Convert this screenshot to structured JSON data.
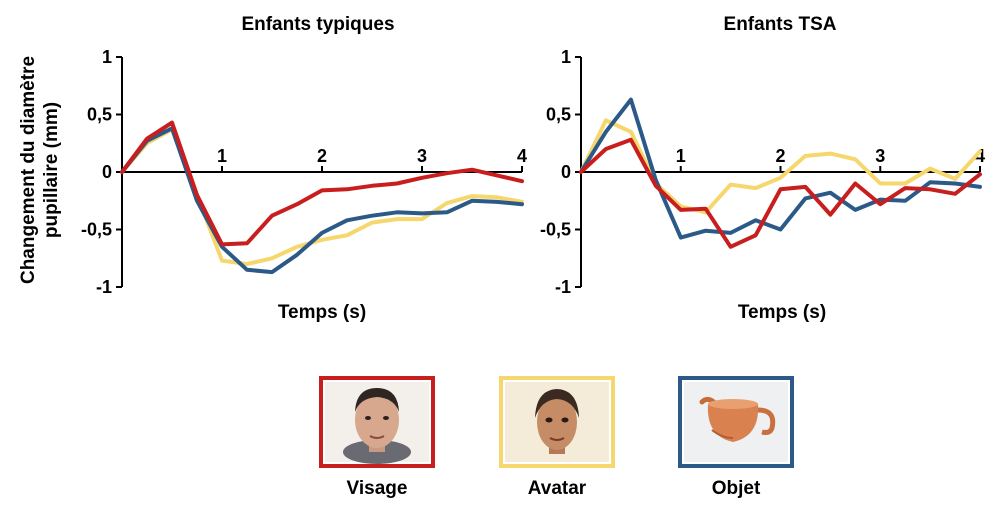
{
  "figure": {
    "ylabel_lines": [
      "Changement du diamètre",
      "pupillaire (mm)"
    ]
  },
  "chart_data": [
    {
      "type": "line",
      "title": "Enfants typiques",
      "xlabel": "Temps (s)",
      "ylabel": "Changement du diamètre pupillaire (mm)",
      "xlim": [
        0,
        4
      ],
      "ylim": [
        -1,
        1
      ],
      "x_ticks": [
        "1",
        "2",
        "3",
        "4"
      ],
      "y_ticks": [
        "1",
        "0,5",
        "0",
        "-0,5",
        "-1"
      ],
      "y_tick_values": [
        1,
        0.5,
        0,
        -0.5,
        -1
      ],
      "grid": false,
      "series": [
        {
          "name": "Avatar",
          "color": "#f5d76e",
          "x": [
            0,
            0.25,
            0.5,
            0.75,
            1.0,
            1.25,
            1.5,
            1.75,
            2.0,
            2.25,
            2.5,
            2.75,
            3.0,
            3.25,
            3.5,
            3.75,
            4.0
          ],
          "y": [
            0,
            0.25,
            0.37,
            -0.2,
            -0.77,
            -0.8,
            -0.75,
            -0.65,
            -0.59,
            -0.55,
            -0.44,
            -0.41,
            -0.41,
            -0.27,
            -0.21,
            -0.22,
            -0.26
          ]
        },
        {
          "name": "Objet",
          "color": "#2c5a88",
          "x": [
            0,
            0.25,
            0.5,
            0.75,
            1.0,
            1.25,
            1.5,
            1.75,
            2.0,
            2.25,
            2.5,
            2.75,
            3.0,
            3.25,
            3.5,
            3.75,
            4.0
          ],
          "y": [
            0,
            0.27,
            0.38,
            -0.25,
            -0.65,
            -0.85,
            -0.87,
            -0.72,
            -0.53,
            -0.42,
            -0.38,
            -0.35,
            -0.36,
            -0.35,
            -0.25,
            -0.26,
            -0.28
          ]
        },
        {
          "name": "Visage",
          "color": "#c81e1e",
          "x": [
            0,
            0.25,
            0.5,
            0.75,
            1.0,
            1.25,
            1.5,
            1.75,
            2.0,
            2.25,
            2.5,
            2.75,
            3.0,
            3.25,
            3.5,
            3.75,
            4.0
          ],
          "y": [
            0,
            0.29,
            0.43,
            -0.2,
            -0.63,
            -0.62,
            -0.38,
            -0.28,
            -0.16,
            -0.15,
            -0.12,
            -0.1,
            -0.05,
            -0.01,
            0.02,
            -0.03,
            -0.08
          ]
        }
      ]
    },
    {
      "type": "line",
      "title": "Enfants TSA",
      "xlabel": "Temps (s)",
      "ylabel": "Changement du diamètre pupillaire (mm)",
      "xlim": [
        0,
        4
      ],
      "ylim": [
        -1,
        1
      ],
      "x_ticks": [
        "1",
        "2",
        "3",
        "4"
      ],
      "y_ticks": [
        "1",
        "0,5",
        "0",
        "-0,5",
        "-1"
      ],
      "y_tick_values": [
        1,
        0.5,
        0,
        -0.5,
        -1
      ],
      "grid": false,
      "series": [
        {
          "name": "Avatar",
          "color": "#f5d76e",
          "x": [
            0,
            0.25,
            0.5,
            0.75,
            1.0,
            1.25,
            1.5,
            1.75,
            2.0,
            2.25,
            2.5,
            2.75,
            3.0,
            3.25,
            3.5,
            3.75,
            4.0
          ],
          "y": [
            0,
            0.45,
            0.35,
            -0.1,
            -0.3,
            -0.35,
            -0.11,
            -0.14,
            -0.05,
            0.14,
            0.16,
            0.11,
            -0.1,
            -0.1,
            0.03,
            -0.06,
            0.18
          ]
        },
        {
          "name": "Objet",
          "color": "#2c5a88",
          "x": [
            0,
            0.25,
            0.5,
            0.75,
            1.0,
            1.25,
            1.5,
            1.75,
            2.0,
            2.25,
            2.5,
            2.75,
            3.0,
            3.25,
            3.5,
            3.75,
            4.0
          ],
          "y": [
            0,
            0.35,
            0.63,
            -0.07,
            -0.57,
            -0.51,
            -0.53,
            -0.42,
            -0.5,
            -0.23,
            -0.18,
            -0.33,
            -0.24,
            -0.25,
            -0.09,
            -0.1,
            -0.13
          ]
        },
        {
          "name": "Visage",
          "color": "#c81e1e",
          "x": [
            0,
            0.25,
            0.5,
            0.75,
            1.0,
            1.25,
            1.5,
            1.75,
            2.0,
            2.25,
            2.5,
            2.75,
            3.0,
            3.25,
            3.5,
            3.75,
            4.0
          ],
          "y": [
            0,
            0.2,
            0.28,
            -0.12,
            -0.33,
            -0.32,
            -0.65,
            -0.55,
            -0.15,
            -0.13,
            -0.37,
            -0.1,
            -0.28,
            -0.14,
            -0.15,
            -0.19,
            -0.02
          ]
        }
      ]
    }
  ],
  "legend": {
    "items": [
      {
        "label": "Visage",
        "color": "#c81e1e",
        "icon": "face-photo-icon"
      },
      {
        "label": "Avatar",
        "color": "#f5d76e",
        "icon": "avatar-face-icon"
      },
      {
        "label": "Objet",
        "color": "#2c5a88",
        "icon": "teapot-icon"
      }
    ]
  }
}
